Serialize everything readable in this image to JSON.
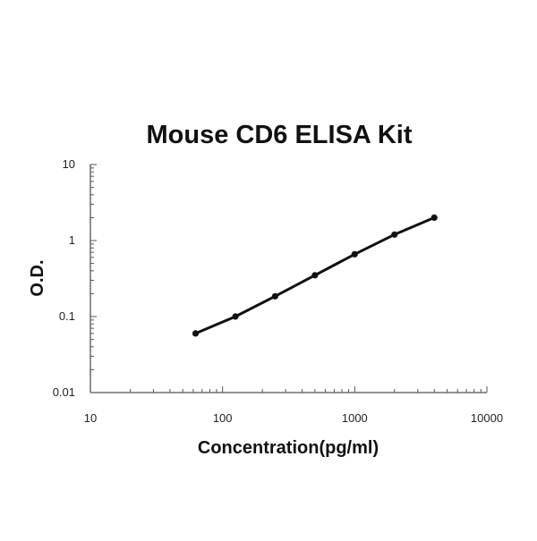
{
  "chart_data": {
    "type": "line",
    "title": "Mouse CD6  ELISA Kit",
    "xlabel": "Concentration(pg/ml)",
    "ylabel": "O.D.",
    "x_scale": "log",
    "y_scale": "log",
    "xlim": [
      10,
      10000
    ],
    "ylim": [
      0.01,
      10
    ],
    "x_ticks": [
      "10",
      "100",
      "1000",
      "10000"
    ],
    "y_ticks": [
      "0.01",
      "0.1",
      "1",
      "10"
    ],
    "grid": false,
    "legend": "none",
    "colors": {
      "line": "#111111",
      "axis": "#555555"
    },
    "series": [
      {
        "x": [
          62.5,
          125,
          250,
          500,
          1000,
          2000,
          4000
        ],
        "y": [
          0.06,
          0.1,
          0.185,
          0.35,
          0.66,
          1.2,
          2.0
        ]
      }
    ]
  }
}
